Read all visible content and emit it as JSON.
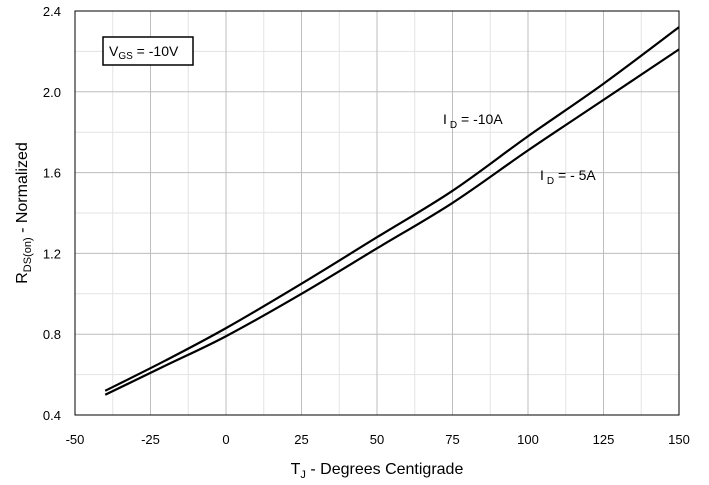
{
  "chart_data": {
    "type": "line",
    "xlabel": {
      "main": "T",
      "sub": "J",
      "rest": " - Degrees Centigrade"
    },
    "ylabel": {
      "main": "R",
      "sub": "DS(on)",
      "rest": " - Normalized"
    },
    "xlim": [
      -50,
      150
    ],
    "ylim": [
      0.4,
      2.4
    ],
    "x_ticks": [
      -50,
      -25,
      0,
      25,
      50,
      75,
      100,
      125,
      150
    ],
    "y_ticks": [
      0.4,
      0.8,
      1.2,
      1.6,
      2.0,
      2.4
    ],
    "x_minor_step": 12.5,
    "y_minor_step": 0.2,
    "grid": true,
    "condition_box": {
      "main": "V",
      "sub": "GS",
      "rest": " = -10V"
    },
    "series": [
      {
        "name": "I D = -10A",
        "label": {
          "main": "I",
          "sub": "D",
          "rest": " = -10A"
        },
        "color": "#000000",
        "points": [
          [
            -40,
            0.52
          ],
          [
            -20,
            0.67
          ],
          [
            0,
            0.83
          ],
          [
            25,
            1.05
          ],
          [
            50,
            1.28
          ],
          [
            75,
            1.51
          ],
          [
            100,
            1.78
          ],
          [
            125,
            2.04
          ],
          [
            150,
            2.32
          ]
        ]
      },
      {
        "name": "I D = - 5A",
        "label": {
          "main": "I",
          "sub": "D",
          "rest": " = - 5A"
        },
        "color": "#000000",
        "points": [
          [
            -40,
            0.5
          ],
          [
            -20,
            0.645
          ],
          [
            0,
            0.79
          ],
          [
            25,
            1.0
          ],
          [
            50,
            1.225
          ],
          [
            75,
            1.45
          ],
          [
            100,
            1.71
          ],
          [
            125,
            1.96
          ],
          [
            150,
            2.21
          ]
        ]
      }
    ]
  }
}
